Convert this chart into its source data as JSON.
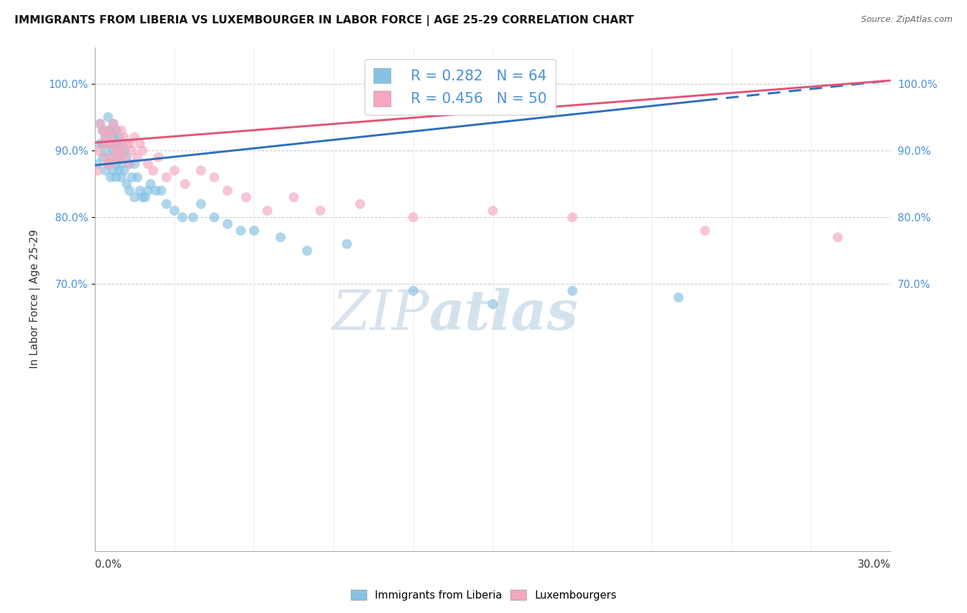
{
  "title": "IMMIGRANTS FROM LIBERIA VS LUXEMBOURGER IN LABOR FORCE | AGE 25-29 CORRELATION CHART",
  "source": "Source: ZipAtlas.com",
  "ylabel": "In Labor Force | Age 25-29",
  "xmin": 0.0,
  "xmax": 0.3,
  "ymin": 0.3,
  "ymax": 1.055,
  "blue_R": 0.282,
  "blue_N": 64,
  "pink_R": 0.456,
  "pink_N": 50,
  "blue_label": "Immigrants from Liberia",
  "pink_label": "Luxembourgers",
  "blue_color": "#85c1e3",
  "pink_color": "#f5a7be",
  "trend_blue": "#2e6fbd",
  "trend_pink": "#e05577",
  "watermark_zip": "ZIP",
  "watermark_atlas": "atlas",
  "ytick_positions": [
    0.7,
    0.8,
    0.9,
    1.0
  ],
  "ytick_labels": [
    "70.0%",
    "80.0%",
    "90.0%",
    "100.0%"
  ],
  "blue_scatter_x": [
    0.001,
    0.002,
    0.002,
    0.003,
    0.003,
    0.003,
    0.004,
    0.004,
    0.004,
    0.005,
    0.005,
    0.005,
    0.005,
    0.006,
    0.006,
    0.006,
    0.006,
    0.007,
    0.007,
    0.007,
    0.007,
    0.008,
    0.008,
    0.008,
    0.008,
    0.009,
    0.009,
    0.009,
    0.01,
    0.01,
    0.01,
    0.011,
    0.011,
    0.012,
    0.012,
    0.013,
    0.013,
    0.014,
    0.015,
    0.015,
    0.016,
    0.017,
    0.018,
    0.019,
    0.02,
    0.021,
    0.023,
    0.025,
    0.027,
    0.03,
    0.033,
    0.037,
    0.04,
    0.045,
    0.05,
    0.055,
    0.06,
    0.07,
    0.08,
    0.095,
    0.12,
    0.15,
    0.18,
    0.22
  ],
  "blue_scatter_y": [
    0.88,
    0.91,
    0.94,
    0.89,
    0.91,
    0.93,
    0.87,
    0.9,
    0.92,
    0.88,
    0.91,
    0.93,
    0.95,
    0.86,
    0.89,
    0.91,
    0.93,
    0.87,
    0.9,
    0.92,
    0.94,
    0.86,
    0.88,
    0.91,
    0.93,
    0.87,
    0.89,
    0.92,
    0.86,
    0.88,
    0.91,
    0.87,
    0.9,
    0.85,
    0.89,
    0.84,
    0.88,
    0.86,
    0.83,
    0.88,
    0.86,
    0.84,
    0.83,
    0.83,
    0.84,
    0.85,
    0.84,
    0.84,
    0.82,
    0.81,
    0.8,
    0.8,
    0.82,
    0.8,
    0.79,
    0.78,
    0.78,
    0.77,
    0.75,
    0.76,
    0.69,
    0.67,
    0.69,
    0.68
  ],
  "pink_scatter_x": [
    0.001,
    0.001,
    0.002,
    0.003,
    0.003,
    0.004,
    0.004,
    0.005,
    0.005,
    0.005,
    0.006,
    0.006,
    0.007,
    0.007,
    0.007,
    0.008,
    0.008,
    0.009,
    0.009,
    0.01,
    0.01,
    0.011,
    0.011,
    0.012,
    0.013,
    0.013,
    0.014,
    0.015,
    0.016,
    0.017,
    0.018,
    0.02,
    0.022,
    0.024,
    0.027,
    0.03,
    0.034,
    0.04,
    0.045,
    0.05,
    0.057,
    0.065,
    0.075,
    0.085,
    0.1,
    0.12,
    0.15,
    0.18,
    0.23,
    0.28
  ],
  "pink_scatter_y": [
    0.87,
    0.9,
    0.94,
    0.91,
    0.93,
    0.89,
    0.92,
    0.88,
    0.91,
    0.93,
    0.88,
    0.92,
    0.89,
    0.91,
    0.94,
    0.9,
    0.93,
    0.89,
    0.91,
    0.9,
    0.93,
    0.89,
    0.92,
    0.91,
    0.88,
    0.91,
    0.9,
    0.92,
    0.89,
    0.91,
    0.9,
    0.88,
    0.87,
    0.89,
    0.86,
    0.87,
    0.85,
    0.87,
    0.86,
    0.84,
    0.83,
    0.81,
    0.83,
    0.81,
    0.82,
    0.8,
    0.81,
    0.8,
    0.78,
    0.77
  ],
  "blue_trend_x0": 0.0,
  "blue_trend_y0": 0.878,
  "blue_trend_x1": 0.3,
  "blue_trend_y1": 1.005,
  "pink_trend_x0": 0.0,
  "pink_trend_y0": 0.912,
  "pink_trend_x1": 0.3,
  "pink_trend_y1": 1.005
}
